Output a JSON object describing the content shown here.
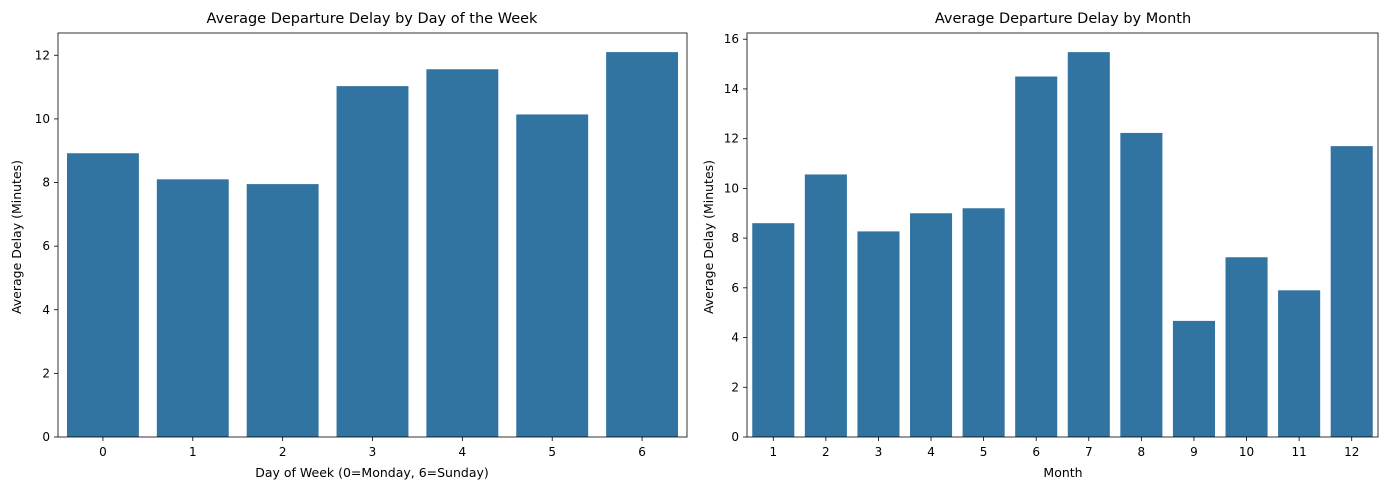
{
  "chart_data": [
    {
      "type": "bar",
      "title": "Average Departure Delay by Day of the Week",
      "xlabel": "Day of Week (0=Monday, 6=Sunday)",
      "ylabel": "Average Delay (Minutes)",
      "categories": [
        "0",
        "1",
        "2",
        "3",
        "4",
        "5",
        "6"
      ],
      "values": [
        8.92,
        8.1,
        7.95,
        11.03,
        11.56,
        10.14,
        12.1
      ],
      "ylim": [
        0,
        12.7
      ],
      "yticks": [
        0,
        2,
        4,
        6,
        8,
        10,
        12
      ],
      "grid": false,
      "color": "#3274a1"
    },
    {
      "type": "bar",
      "title": "Average Departure Delay by Month",
      "xlabel": "Month",
      "ylabel": "Average Delay (Minutes)",
      "categories": [
        "1",
        "2",
        "3",
        "4",
        "5",
        "6",
        "7",
        "8",
        "9",
        "10",
        "11",
        "12"
      ],
      "values": [
        8.6,
        10.56,
        8.27,
        9.0,
        9.2,
        14.5,
        15.48,
        12.23,
        4.67,
        7.23,
        5.9,
        11.7
      ],
      "ylim": [
        0,
        16.25
      ],
      "yticks": [
        0,
        2,
        4,
        6,
        8,
        10,
        12,
        14,
        16
      ],
      "grid": false,
      "color": "#3274a1"
    }
  ]
}
